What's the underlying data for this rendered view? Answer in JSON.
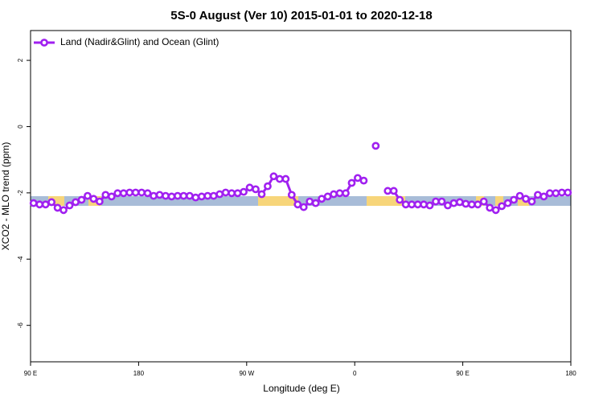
{
  "chart_data": {
    "type": "line",
    "title": "5S-0 August (Ver 10)   2015-01-01 to 2020-12-18",
    "xlabel": "Longitude (deg E)",
    "ylabel": "XCO2 - MLO trend (ppm)",
    "xlim": [
      90,
      540
    ],
    "ylim": [
      -7.1,
      2.9
    ],
    "xticks": [
      {
        "value": 90,
        "label": "90 E"
      },
      180,
      {
        "value": 270,
        "label": "90 W"
      },
      {
        "value": 360,
        "label": "0"
      },
      {
        "value": 450,
        "label": "90 E"
      },
      {
        "value": 540,
        "label": "180"
      }
    ],
    "yticks": [
      2,
      0,
      -2,
      -4,
      -6
    ],
    "legend": "top-left",
    "x": [
      92.5,
      97.5,
      102.5,
      107.5,
      112.5,
      117.5,
      122.5,
      127.5,
      132.5,
      137.5,
      142.5,
      147.5,
      152.5,
      157.5,
      162.5,
      167.5,
      172.5,
      177.5,
      182.5,
      187.5,
      192.5,
      197.5,
      202.5,
      207.5,
      212.5,
      217.5,
      222.5,
      227.5,
      232.5,
      237.5,
      242.5,
      247.5,
      252.5,
      257.5,
      262.5,
      267.5,
      272.5,
      277.5,
      282.5,
      287.5,
      292.5,
      297.5,
      302.5,
      307.5,
      312.5,
      317.5,
      322.5,
      327.5,
      332.5,
      337.5,
      342.5,
      347.5,
      352.5,
      357.5,
      362.5,
      367.5,
      372.5,
      377.5,
      382.5,
      387.5,
      392.5,
      397.5,
      402.5,
      407.5,
      412.5,
      417.5,
      422.5,
      427.5,
      432.5,
      437.5,
      442.5,
      447.5,
      452.5,
      457.5,
      462.5,
      467.5,
      472.5,
      477.5,
      482.5,
      487.5,
      492.5,
      497.5,
      502.5,
      507.5,
      512.5,
      517.5,
      522.5,
      527.5,
      532.5,
      537.5
    ],
    "series": [
      {
        "name": "Land (Nadir&Glint) and Ocean (Glint)",
        "color": "#a020f0",
        "values": [
          -2.31,
          -2.35,
          -2.35,
          -2.28,
          -2.45,
          -2.52,
          -2.38,
          -2.28,
          -2.21,
          -2.09,
          -2.18,
          -2.26,
          -2.06,
          -2.11,
          -2.01,
          -2.01,
          -1.99,
          -1.99,
          -1.99,
          -2.01,
          -2.09,
          -2.06,
          -2.09,
          -2.11,
          -2.09,
          -2.09,
          -2.09,
          -2.14,
          -2.11,
          -2.09,
          -2.09,
          -2.04,
          -1.99,
          -2.01,
          -2.01,
          -1.97,
          -1.84,
          -1.89,
          -2.04,
          -1.8,
          -1.5,
          -1.58,
          -1.58,
          -2.06,
          -2.35,
          -2.43,
          -2.26,
          -2.31,
          -2.18,
          -2.11,
          -2.04,
          -2.01,
          -2.01,
          -1.7,
          -1.55,
          -1.63,
          null,
          -0.58,
          null,
          -1.94,
          -1.94,
          -2.21,
          -2.35,
          -2.35,
          -2.35,
          -2.35,
          -2.38,
          -2.26,
          -2.26,
          -2.38,
          -2.31,
          -2.28,
          -2.33,
          -2.35,
          -2.35,
          -2.26,
          -2.45,
          -2.52,
          -2.4,
          -2.31,
          -2.21,
          -2.09,
          -2.18,
          -2.26,
          -2.06,
          -2.11,
          -2.01,
          -2.01,
          -1.99,
          -1.99
        ]
      }
    ]
  }
}
